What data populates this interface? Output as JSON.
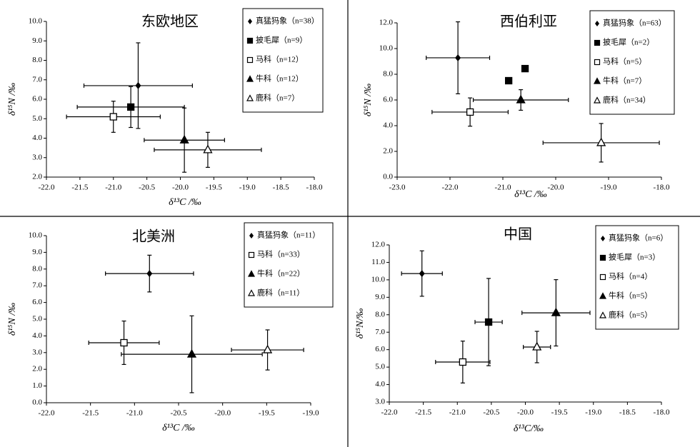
{
  "chart_data": [
    {
      "type": "scatter",
      "title": "东欧地区",
      "x_label": "δ¹³C /‰",
      "y_label": "δ¹⁵N /‰",
      "xlim": [
        -22,
        -18
      ],
      "ylim": [
        2,
        10
      ],
      "xticks": [
        {
          "value": -22,
          "label": "-22.0"
        },
        {
          "value": -21.5,
          "label": "-21.5"
        },
        {
          "value": -21,
          "label": "-21.0"
        },
        {
          "value": -20.5,
          "label": "-20.5"
        },
        {
          "value": -20,
          "label": "-20.0"
        },
        {
          "value": -19.5,
          "label": "-19.5"
        },
        {
          "value": -19,
          "label": "-19.0"
        },
        {
          "value": -18.5,
          "label": "-18.5"
        },
        {
          "value": -18,
          "label": "-18.0"
        }
      ],
      "yticks": [
        {
          "value": 2,
          "label": "2.0"
        },
        {
          "value": 3,
          "label": "3.0"
        },
        {
          "value": 4,
          "label": "4.0"
        },
        {
          "value": 5,
          "label": "5.0"
        },
        {
          "value": 6,
          "label": "6.0"
        },
        {
          "value": 7,
          "label": "7.0"
        },
        {
          "value": 8,
          "label": "8.0"
        },
        {
          "value": 9,
          "label": "9.0"
        },
        {
          "value": 10,
          "label": "10.0"
        }
      ],
      "legend": "upper right",
      "series": [
        {
          "name": "真猛犸象（n=38）",
          "marker": "diamond",
          "color": "#000000",
          "x": [
            -20.63
          ],
          "y": [
            6.7
          ],
          "xerr": [
            0.81
          ],
          "yerr": [
            2.2
          ]
        },
        {
          "name": "披毛犀（n=9）",
          "marker": "square",
          "color": "#000000",
          "x": [
            -20.74
          ],
          "y": [
            5.6
          ],
          "xerr": [
            0.8
          ],
          "yerr": [
            1.05
          ]
        },
        {
          "name": "马科（n=12）",
          "marker": "square-open",
          "color": "#000000",
          "x": [
            -21.0
          ],
          "y": [
            5.1
          ],
          "xerr": [
            0.7
          ],
          "yerr": [
            0.8
          ]
        },
        {
          "name": "牛科（n=12）",
          "marker": "triangle",
          "color": "#000000",
          "x": [
            -19.94
          ],
          "y": [
            3.9
          ],
          "xerr": [
            0.6
          ],
          "yerr": [
            1.65
          ]
        },
        {
          "name": "鹿科（n=7）",
          "marker": "triangle-open",
          "color": "#000000",
          "x": [
            -19.59
          ],
          "y": [
            3.4
          ],
          "xerr": [
            0.8
          ],
          "yerr": [
            0.9
          ]
        }
      ]
    },
    {
      "type": "scatter",
      "title": "西伯利亚",
      "x_label": "δ¹³C /‰",
      "y_label": "δ¹⁵N /‰",
      "xlim": [
        -23,
        -18
      ],
      "ylim": [
        0,
        12
      ],
      "xticks": [
        {
          "value": -23,
          "label": "-23.0"
        },
        {
          "value": -22,
          "label": "-22.0"
        },
        {
          "value": -21,
          "label": "-21.0"
        },
        {
          "value": -20,
          "label": "-20.0"
        },
        {
          "value": -19,
          "label": "-19.0"
        },
        {
          "value": -18,
          "label": "-18.0"
        }
      ],
      "yticks": [
        {
          "value": 0,
          "label": "0.0"
        },
        {
          "value": 2,
          "label": "2.0"
        },
        {
          "value": 4,
          "label": "4.0"
        },
        {
          "value": 6,
          "label": "6.0"
        },
        {
          "value": 8,
          "label": "8.0"
        },
        {
          "value": 10,
          "label": "10.0"
        },
        {
          "value": 12,
          "label": "12.0"
        }
      ],
      "legend": "upper right",
      "series": [
        {
          "name": "真猛犸象（n=63）",
          "marker": "diamond",
          "color": "#000000",
          "x": [
            -21.85
          ],
          "y": [
            9.28
          ],
          "xerr": [
            0.6
          ],
          "yerr": [
            2.8
          ]
        },
        {
          "name": "披毛犀（n=2）",
          "marker": "square",
          "color": "#000000",
          "x": [
            -20.89,
            -20.58
          ],
          "y": [
            7.5,
            8.44
          ]
        },
        {
          "name": "马科（n=5）",
          "marker": "square-open",
          "color": "#000000",
          "x": [
            -21.62
          ],
          "y": [
            5.06
          ],
          "xerr": [
            0.72
          ],
          "yerr": [
            1.1
          ]
        },
        {
          "name": "牛科（n=7）",
          "marker": "triangle",
          "color": "#000000",
          "x": [
            -20.66
          ],
          "y": [
            6.0
          ],
          "xerr": [
            0.9
          ],
          "yerr": [
            0.8
          ]
        },
        {
          "name": "鹿科（n=34）",
          "marker": "triangle-open",
          "color": "#000000",
          "x": [
            -19.14
          ],
          "y": [
            2.67
          ],
          "xerr": [
            1.1
          ],
          "yerr": [
            1.5
          ]
        }
      ]
    },
    {
      "type": "scatter",
      "title": "北美洲",
      "x_label": "δ¹³C /‰",
      "y_label": "δ¹⁵N /‰",
      "xlim": [
        -22,
        -19
      ],
      "ylim": [
        0,
        10
      ],
      "xticks": [
        {
          "value": -22,
          "label": "-22.0"
        },
        {
          "value": -21.5,
          "label": "-21.5"
        },
        {
          "value": -21,
          "label": "-21.0"
        },
        {
          "value": -20.5,
          "label": "-20.5"
        },
        {
          "value": -20,
          "label": "-20.0"
        },
        {
          "value": -19.5,
          "label": "-19.5"
        },
        {
          "value": -19,
          "label": "-19.0"
        }
      ],
      "yticks": [
        {
          "value": 0,
          "label": "0.0"
        },
        {
          "value": 1,
          "label": "1.0"
        },
        {
          "value": 2,
          "label": "2.0"
        },
        {
          "value": 3,
          "label": "3.0"
        },
        {
          "value": 4,
          "label": "4.0"
        },
        {
          "value": 5,
          "label": "5.0"
        },
        {
          "value": 6,
          "label": "6.0"
        },
        {
          "value": 7,
          "label": "7.0"
        },
        {
          "value": 8,
          "label": "8.0"
        },
        {
          "value": 9,
          "label": "9.0"
        },
        {
          "value": 10,
          "label": "10.0"
        }
      ],
      "legend": "upper right",
      "series": [
        {
          "name": "真猛犸象（n=11）",
          "marker": "diamond",
          "color": "#000000",
          "x": [
            -20.83
          ],
          "y": [
            7.73
          ],
          "xerr": [
            0.5
          ],
          "yerr": [
            1.1
          ]
        },
        {
          "name": "马科（n=33）",
          "marker": "square-open",
          "color": "#000000",
          "x": [
            -21.12
          ],
          "y": [
            3.59
          ],
          "xerr": [
            0.4
          ],
          "yerr": [
            1.3
          ]
        },
        {
          "name": "牛科（n=22）",
          "marker": "triangle",
          "color": "#000000",
          "x": [
            -20.35
          ],
          "y": [
            2.9
          ],
          "xerr": [
            0.8
          ],
          "yerr": [
            2.3
          ]
        },
        {
          "name": "鹿科（n=11）",
          "marker": "triangle-open",
          "color": "#000000",
          "x": [
            -19.49
          ],
          "y": [
            3.16
          ],
          "xerr": [
            0.41
          ],
          "yerr": [
            1.2
          ]
        }
      ]
    },
    {
      "type": "scatter",
      "title": "中国",
      "x_label": "δ¹³C/‰",
      "y_label": "δ¹⁵N/‰",
      "xlim": [
        -22,
        -18
      ],
      "ylim": [
        3,
        12
      ],
      "xticks": [
        {
          "value": -22,
          "label": "-22.0"
        },
        {
          "value": -21.5,
          "label": "-21.5"
        },
        {
          "value": -21,
          "label": "-21.0"
        },
        {
          "value": -20.5,
          "label": "-20.5"
        },
        {
          "value": -20,
          "label": "-20.0"
        },
        {
          "value": -19.5,
          "label": "-19.5"
        },
        {
          "value": -19,
          "label": "-19.0"
        },
        {
          "value": -18.5,
          "label": "-18.5"
        },
        {
          "value": -18,
          "label": "-18.0"
        }
      ],
      "yticks": [
        {
          "value": 3,
          "label": "3.0"
        },
        {
          "value": 4,
          "label": "4.0"
        },
        {
          "value": 5,
          "label": "5.0"
        },
        {
          "value": 6,
          "label": "6.0"
        },
        {
          "value": 7,
          "label": "7.0"
        },
        {
          "value": 8,
          "label": "8.0"
        },
        {
          "value": 9,
          "label": "9.0"
        },
        {
          "value": 10,
          "label": "10.0"
        },
        {
          "value": 11,
          "label": "11.0"
        },
        {
          "value": 12,
          "label": "12.0"
        }
      ],
      "legend": "upper right",
      "series": [
        {
          "name": "真猛犸象（n=6）",
          "marker": "diamond",
          "color": "#000000",
          "x": [
            -21.52
          ],
          "y": [
            10.36
          ],
          "xerr": [
            0.3
          ],
          "yerr": [
            1.3
          ]
        },
        {
          "name": "披毛犀（n=3）",
          "marker": "square",
          "color": "#000000",
          "x": [
            -20.54
          ],
          "y": [
            7.58
          ],
          "xerr": [
            0.2
          ],
          "yerr": [
            2.5
          ]
        },
        {
          "name": "马科（n=4）",
          "marker": "square-open",
          "color": "#000000",
          "x": [
            -20.92
          ],
          "y": [
            5.29
          ],
          "xerr": [
            0.4
          ],
          "yerr": [
            1.2
          ]
        },
        {
          "name": "牛科（n=5）",
          "marker": "triangle",
          "color": "#000000",
          "x": [
            -19.55
          ],
          "y": [
            8.11
          ],
          "xerr": [
            0.5
          ],
          "yerr": [
            1.9
          ]
        },
        {
          "name": "鹿科（n=5）",
          "marker": "triangle-open",
          "color": "#000000",
          "x": [
            -19.83
          ],
          "y": [
            6.15
          ],
          "xerr": [
            0.2
          ],
          "yerr": [
            0.9
          ]
        }
      ]
    }
  ]
}
